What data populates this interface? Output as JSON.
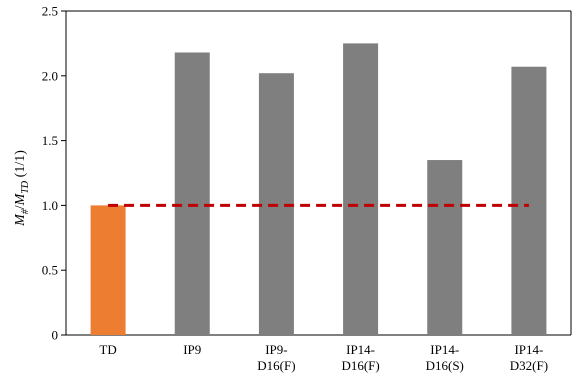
{
  "chart_data": {
    "type": "bar",
    "categories": [
      [
        "TD"
      ],
      [
        "IP9"
      ],
      [
        "IP9-",
        "D16(F)"
      ],
      [
        "IP14-",
        "D16(F)"
      ],
      [
        "IP14-",
        "D16(S)"
      ],
      [
        "IP14-",
        "D32(F)"
      ]
    ],
    "values": [
      1.0,
      2.18,
      2.02,
      2.25,
      1.35,
      2.07
    ],
    "bar_colors": [
      "#ED7D31",
      "#7F7F7F",
      "#7F7F7F",
      "#7F7F7F",
      "#7F7F7F",
      "#7F7F7F"
    ],
    "ylim": [
      0,
      2.5
    ],
    "yticks": [
      "0",
      "0.5",
      "1.0",
      "1.5",
      "2.0",
      "2.5"
    ],
    "ylabel": {
      "m1": "M",
      "s1": "#",
      "slash": "/",
      "m2": "M",
      "s2": "TD",
      "unit": " (1/1)"
    },
    "reference_line": {
      "value": 1.0,
      "color": "#C00000",
      "style": "dashed"
    },
    "grid": false,
    "legend": "none"
  }
}
